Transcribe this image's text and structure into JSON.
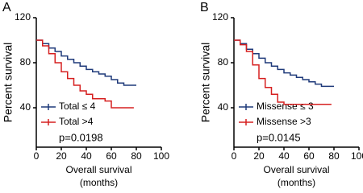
{
  "chart_data": [
    {
      "type": "line",
      "panel": "A",
      "ylabel": "Percent survival",
      "xlabel": [
        "Overall survival",
        "(months)"
      ],
      "annotation": "p=0.0198",
      "xlim": [
        0,
        100
      ],
      "xticks": [
        0,
        20,
        40,
        60,
        80,
        100
      ],
      "ylim": [
        5,
        120
      ],
      "yticks": [
        40,
        80,
        120
      ],
      "legend": "bottom-left",
      "series": [
        {
          "name": "Total ≤ 4",
          "color": "#1f3a7a",
          "x": [
            0,
            5,
            10,
            15,
            20,
            25,
            30,
            35,
            40,
            45,
            50,
            55,
            60,
            65,
            70,
            75,
            80
          ],
          "values": [
            100,
            97,
            93,
            90,
            86,
            83,
            80,
            77,
            74,
            72,
            70,
            68,
            65,
            62,
            60,
            60,
            60
          ]
        },
        {
          "name": "Total >4",
          "color": "#d62020",
          "x": [
            0,
            5,
            10,
            15,
            20,
            25,
            30,
            35,
            40,
            45,
            50,
            55,
            60,
            78
          ],
          "values": [
            100,
            95,
            88,
            80,
            72,
            66,
            60,
            55,
            52,
            48,
            48,
            46,
            40,
            40
          ]
        }
      ]
    },
    {
      "type": "line",
      "panel": "B",
      "ylabel": "Percent survival",
      "xlabel": [
        "Overall survival",
        "(months)"
      ],
      "annotation": "p=0.0145",
      "xlim": [
        0,
        100
      ],
      "xticks": [
        0,
        20,
        40,
        60,
        80,
        100
      ],
      "ylim": [
        5,
        120
      ],
      "yticks": [
        40,
        80,
        120
      ],
      "legend": "bottom-left",
      "series": [
        {
          "name": "Missense ≤ 3",
          "color": "#1f3a7a",
          "x": [
            0,
            5,
            10,
            15,
            20,
            25,
            30,
            35,
            40,
            45,
            50,
            55,
            60,
            65,
            70,
            75,
            80
          ],
          "values": [
            100,
            97,
            92,
            88,
            84,
            80,
            77,
            74,
            71,
            69,
            67,
            65,
            63,
            61,
            59,
            59,
            59
          ]
        },
        {
          "name": "Missense >3",
          "color": "#d62020",
          "x": [
            0,
            5,
            10,
            15,
            20,
            25,
            30,
            35,
            40,
            45,
            50,
            55,
            60,
            78
          ],
          "values": [
            100,
            96,
            90,
            78,
            66,
            58,
            52,
            45,
            43,
            43,
            43,
            43,
            43,
            43
          ]
        }
      ]
    }
  ]
}
